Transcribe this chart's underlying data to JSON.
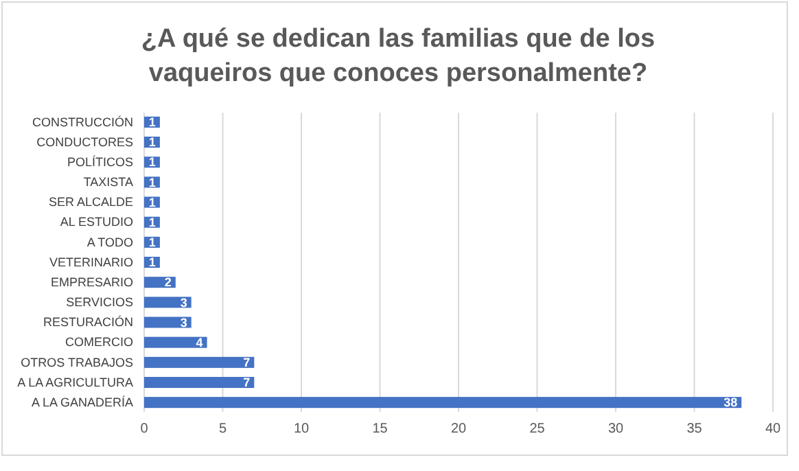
{
  "chart_data": {
    "type": "bar",
    "orientation": "horizontal",
    "title": "¿A qué se dedican las familias que de los vaqueiros que conoces personalmente?",
    "categories": [
      "CONSTRUCCIÓN",
      "CONDUCTORES",
      "POLÍTICOS",
      "TAXISTA",
      "SER ALCALDE",
      "AL ESTUDIO",
      "A TODO",
      "VETERINARIO",
      "EMPRESARIO",
      "SERVICIOS",
      "RESTURACIÓN",
      "COMERCIO",
      "OTROS TRABAJOS",
      "A LA AGRICULTURA",
      "A LA GANADERÍA"
    ],
    "values": [
      1,
      1,
      1,
      1,
      1,
      1,
      1,
      1,
      2,
      3,
      3,
      4,
      7,
      7,
      38
    ],
    "color": "#4472c4",
    "xlim": [
      0,
      40
    ],
    "xticks": [
      0,
      5,
      10,
      15,
      20,
      25,
      30,
      35,
      40
    ],
    "grid": "x",
    "data_labels": true
  }
}
